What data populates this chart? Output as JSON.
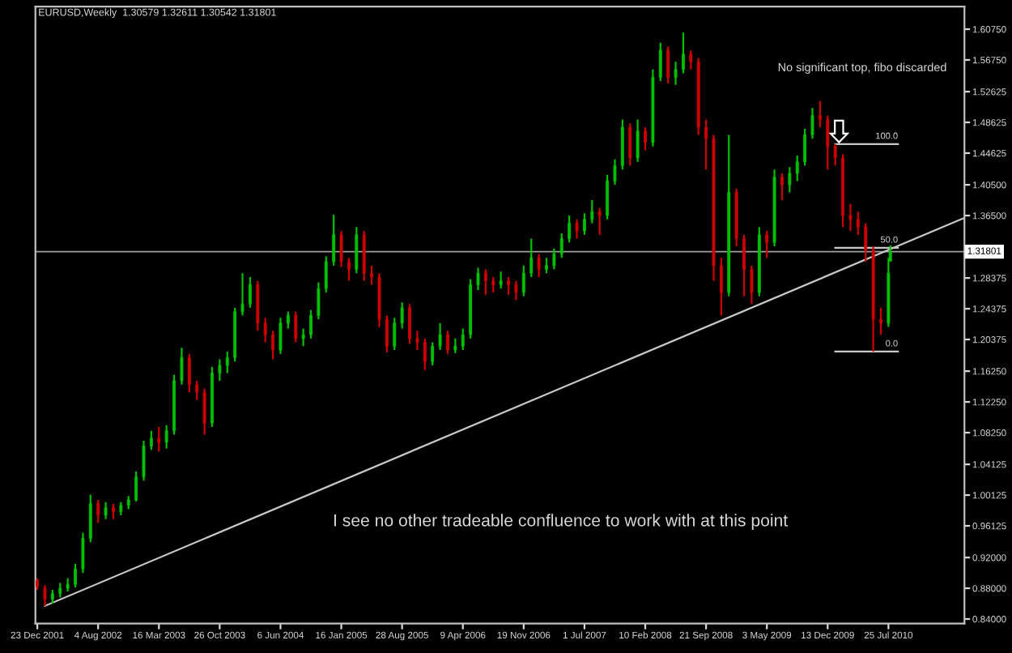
{
  "chart_data": {
    "type": "candlestick",
    "title": "EURUSD,Weekly  1.30579 1.32611 1.30542 1.31801",
    "x": [
      "2001-12-23",
      "2002-01-20",
      "2002-02-17",
      "2002-03-17",
      "2002-04-14",
      "2002-05-12",
      "2002-06-09",
      "2002-07-07",
      "2002-08-04",
      "2002-09-01",
      "2002-09-29",
      "2002-10-27",
      "2002-11-24",
      "2002-12-22",
      "2003-01-19",
      "2003-02-16",
      "2003-03-16",
      "2003-04-13",
      "2003-05-11",
      "2003-06-08",
      "2003-07-06",
      "2003-08-03",
      "2003-08-31",
      "2003-09-28",
      "2003-10-26",
      "2003-11-23",
      "2003-12-21",
      "2004-01-18",
      "2004-02-15",
      "2004-03-14",
      "2004-04-11",
      "2004-05-09",
      "2004-06-06",
      "2004-07-04",
      "2004-08-01",
      "2004-08-29",
      "2004-09-26",
      "2004-10-24",
      "2004-11-21",
      "2004-12-19",
      "2005-01-16",
      "2005-02-13",
      "2005-03-13",
      "2005-04-10",
      "2005-05-08",
      "2005-06-05",
      "2005-07-03",
      "2005-07-31",
      "2005-08-28",
      "2005-09-25",
      "2005-10-23",
      "2005-11-20",
      "2005-12-18",
      "2006-01-15",
      "2006-02-12",
      "2006-03-12",
      "2006-04-09",
      "2006-05-07",
      "2006-06-04",
      "2006-07-02",
      "2006-07-30",
      "2006-08-27",
      "2006-09-24",
      "2006-10-22",
      "2006-11-19",
      "2006-12-17",
      "2007-01-14",
      "2007-02-11",
      "2007-03-11",
      "2007-04-08",
      "2007-05-06",
      "2007-06-03",
      "2007-07-01",
      "2007-07-29",
      "2007-08-26",
      "2007-09-23",
      "2007-10-21",
      "2007-11-18",
      "2007-12-16",
      "2008-01-13",
      "2008-02-10",
      "2008-03-09",
      "2008-04-06",
      "2008-05-04",
      "2008-06-01",
      "2008-06-29",
      "2008-07-27",
      "2008-08-24",
      "2008-09-21",
      "2008-10-19",
      "2008-11-16",
      "2008-12-14",
      "2009-01-11",
      "2009-02-08",
      "2009-03-08",
      "2009-04-05",
      "2009-05-03",
      "2009-05-31",
      "2009-06-28",
      "2009-07-26",
      "2009-08-23",
      "2009-09-20",
      "2009-10-18",
      "2009-11-15",
      "2009-12-13",
      "2010-01-10",
      "2010-02-07",
      "2010-03-07",
      "2010-04-04",
      "2010-05-02",
      "2010-05-30",
      "2010-06-27",
      "2010-07-25",
      "2010-08-01"
    ],
    "ohlc": [
      [
        0.89,
        0.893,
        0.878,
        0.882
      ],
      [
        0.88,
        0.884,
        0.857,
        0.866
      ],
      [
        0.866,
        0.878,
        0.86,
        0.873
      ],
      [
        0.873,
        0.887,
        0.868,
        0.88
      ],
      [
        0.88,
        0.893,
        0.876,
        0.885
      ],
      [
        0.885,
        0.912,
        0.881,
        0.905
      ],
      [
        0.905,
        0.952,
        0.9,
        0.945
      ],
      [
        0.945,
        1.002,
        0.94,
        0.99
      ],
      [
        0.99,
        0.995,
        0.965,
        0.975
      ],
      [
        0.975,
        0.992,
        0.97,
        0.985
      ],
      [
        0.985,
        0.99,
        0.97,
        0.98
      ],
      [
        0.98,
        0.992,
        0.975,
        0.988
      ],
      [
        0.988,
        1.0,
        0.983,
        0.995
      ],
      [
        0.995,
        1.032,
        0.993,
        1.025
      ],
      [
        1.025,
        1.072,
        1.02,
        1.065
      ],
      [
        1.065,
        1.085,
        1.06,
        1.075
      ],
      [
        1.075,
        1.09,
        1.058,
        1.07
      ],
      [
        1.07,
        1.092,
        1.062,
        1.085
      ],
      [
        1.085,
        1.158,
        1.08,
        1.15
      ],
      [
        1.15,
        1.193,
        1.145,
        1.18
      ],
      [
        1.18,
        1.185,
        1.135,
        1.145
      ],
      [
        1.145,
        1.15,
        1.125,
        1.135
      ],
      [
        1.135,
        1.14,
        1.08,
        1.095
      ],
      [
        1.095,
        1.168,
        1.09,
        1.16
      ],
      [
        1.16,
        1.178,
        1.15,
        1.17
      ],
      [
        1.17,
        1.188,
        1.16,
        1.18
      ],
      [
        1.18,
        1.245,
        1.175,
        1.24
      ],
      [
        1.24,
        1.29,
        1.235,
        1.25
      ],
      [
        1.25,
        1.285,
        1.245,
        1.275
      ],
      [
        1.275,
        1.28,
        1.215,
        1.225
      ],
      [
        1.225,
        1.232,
        1.2,
        1.21
      ],
      [
        1.21,
        1.215,
        1.178,
        1.19
      ],
      [
        1.19,
        1.232,
        1.185,
        1.225
      ],
      [
        1.225,
        1.24,
        1.218,
        1.235
      ],
      [
        1.235,
        1.24,
        1.2,
        1.205
      ],
      [
        1.205,
        1.218,
        1.195,
        1.21
      ],
      [
        1.21,
        1.242,
        1.205,
        1.235
      ],
      [
        1.235,
        1.278,
        1.23,
        1.27
      ],
      [
        1.27,
        1.312,
        1.265,
        1.305
      ],
      [
        1.305,
        1.366,
        1.3,
        1.34
      ],
      [
        1.34,
        1.345,
        1.298,
        1.305
      ],
      [
        1.305,
        1.31,
        1.28,
        1.295
      ],
      [
        1.295,
        1.35,
        1.29,
        1.34
      ],
      [
        1.34,
        1.345,
        1.28,
        1.29
      ],
      [
        1.29,
        1.3,
        1.275,
        1.285
      ],
      [
        1.285,
        1.29,
        1.22,
        1.23
      ],
      [
        1.23,
        1.235,
        1.187,
        1.195
      ],
      [
        1.195,
        1.232,
        1.19,
        1.225
      ],
      [
        1.225,
        1.252,
        1.218,
        1.245
      ],
      [
        1.245,
        1.25,
        1.198,
        1.205
      ],
      [
        1.205,
        1.215,
        1.19,
        1.2
      ],
      [
        1.2,
        1.205,
        1.164,
        1.175
      ],
      [
        1.175,
        1.2,
        1.17,
        1.195
      ],
      [
        1.195,
        1.225,
        1.19,
        1.21
      ],
      [
        1.21,
        1.215,
        1.185,
        1.19
      ],
      [
        1.19,
        1.205,
        1.186,
        1.195
      ],
      [
        1.195,
        1.218,
        1.19,
        1.21
      ],
      [
        1.21,
        1.282,
        1.205,
        1.275
      ],
      [
        1.275,
        1.297,
        1.268,
        1.29
      ],
      [
        1.29,
        1.295,
        1.262,
        1.28
      ],
      [
        1.28,
        1.285,
        1.265,
        1.275
      ],
      [
        1.275,
        1.292,
        1.27,
        1.28
      ],
      [
        1.28,
        1.285,
        1.262,
        1.275
      ],
      [
        1.275,
        1.28,
        1.255,
        1.265
      ],
      [
        1.265,
        1.3,
        1.26,
        1.29
      ],
      [
        1.29,
        1.335,
        1.285,
        1.31
      ],
      [
        1.31,
        1.315,
        1.285,
        1.295
      ],
      [
        1.295,
        1.31,
        1.29,
        1.3
      ],
      [
        1.3,
        1.322,
        1.295,
        1.315
      ],
      [
        1.315,
        1.342,
        1.31,
        1.335
      ],
      [
        1.335,
        1.365,
        1.33,
        1.355
      ],
      [
        1.355,
        1.36,
        1.335,
        1.345
      ],
      [
        1.345,
        1.368,
        1.34,
        1.36
      ],
      [
        1.36,
        1.385,
        1.355,
        1.37
      ],
      [
        1.37,
        1.375,
        1.34,
        1.365
      ],
      [
        1.365,
        1.418,
        1.36,
        1.41
      ],
      [
        1.41,
        1.438,
        1.405,
        1.43
      ],
      [
        1.43,
        1.49,
        1.425,
        1.48
      ],
      [
        1.48,
        1.485,
        1.43,
        1.44
      ],
      [
        1.44,
        1.49,
        1.435,
        1.475
      ],
      [
        1.475,
        1.48,
        1.45,
        1.46
      ],
      [
        1.46,
        1.555,
        1.455,
        1.545
      ],
      [
        1.545,
        1.59,
        1.54,
        1.58
      ],
      [
        1.58,
        1.585,
        1.537,
        1.545
      ],
      [
        1.545,
        1.565,
        1.535,
        1.555
      ],
      [
        1.555,
        1.603,
        1.55,
        1.575
      ],
      [
        1.575,
        1.58,
        1.555,
        1.565
      ],
      [
        1.565,
        1.57,
        1.47,
        1.48
      ],
      [
        1.48,
        1.49,
        1.425,
        1.465
      ],
      [
        1.465,
        1.47,
        1.28,
        1.3
      ],
      [
        1.3,
        1.31,
        1.235,
        1.265
      ],
      [
        1.265,
        1.47,
        1.26,
        1.395
      ],
      [
        1.395,
        1.4,
        1.325,
        1.335
      ],
      [
        1.335,
        1.34,
        1.26,
        1.295
      ],
      [
        1.295,
        1.3,
        1.25,
        1.265
      ],
      [
        1.265,
        1.35,
        1.26,
        1.34
      ],
      [
        1.34,
        1.345,
        1.31,
        1.33
      ],
      [
        1.33,
        1.425,
        1.325,
        1.415
      ],
      [
        1.415,
        1.42,
        1.385,
        1.405
      ],
      [
        1.405,
        1.428,
        1.395,
        1.42
      ],
      [
        1.42,
        1.443,
        1.41,
        1.435
      ],
      [
        1.435,
        1.478,
        1.43,
        1.47
      ],
      [
        1.47,
        1.505,
        1.465,
        1.495
      ],
      [
        1.495,
        1.514,
        1.48,
        1.49
      ],
      [
        1.49,
        1.495,
        1.425,
        1.455
      ],
      [
        1.455,
        1.458,
        1.43,
        1.44
      ],
      [
        1.44,
        1.445,
        1.35,
        1.365
      ],
      [
        1.365,
        1.38,
        1.345,
        1.36
      ],
      [
        1.36,
        1.37,
        1.34,
        1.35
      ],
      [
        1.35,
        1.355,
        1.305,
        1.32
      ],
      [
        1.32,
        1.325,
        1.188,
        1.23
      ],
      [
        1.23,
        1.245,
        1.21,
        1.225
      ],
      [
        1.225,
        1.31,
        1.22,
        1.29
      ],
      [
        1.30579,
        1.32611,
        1.30542,
        1.31801
      ]
    ],
    "colors": [
      "#d00000",
      "#d00000",
      "#00c000",
      "#00c000",
      "#00c000",
      "#00c000",
      "#00c000",
      "#00c000",
      "#d00000",
      "#00c000",
      "#d00000",
      "#00c000",
      "#00c000",
      "#00c000",
      "#00c000",
      "#00c000",
      "#d00000",
      "#00c000",
      "#00c000",
      "#00c000",
      "#d00000",
      "#d00000",
      "#d00000",
      "#00c000",
      "#00c000",
      "#00c000",
      "#00c000",
      "#00c000",
      "#00c000",
      "#d00000",
      "#d00000",
      "#d00000",
      "#00c000",
      "#00c000",
      "#d00000",
      "#00c000",
      "#00c000",
      "#00c000",
      "#00c000",
      "#00c000",
      "#d00000",
      "#d00000",
      "#00c000",
      "#d00000",
      "#d00000",
      "#d00000",
      "#d00000",
      "#00c000",
      "#00c000",
      "#d00000",
      "#d00000",
      "#d00000",
      "#00c000",
      "#00c000",
      "#d00000",
      "#00c000",
      "#00c000",
      "#00c000",
      "#00c000",
      "#d00000",
      "#d00000",
      "#00c000",
      "#d00000",
      "#d00000",
      "#00c000",
      "#00c000",
      "#d00000",
      "#00c000",
      "#00c000",
      "#00c000",
      "#00c000",
      "#d00000",
      "#00c000",
      "#00c000",
      "#d00000",
      "#00c000",
      "#00c000",
      "#00c000",
      "#d00000",
      "#00c000",
      "#d00000",
      "#00c000",
      "#00c000",
      "#d00000",
      "#00c000",
      "#00c000",
      "#d00000",
      "#d00000",
      "#d00000",
      "#d00000",
      "#d00000",
      "#00c000",
      "#d00000",
      "#d00000",
      "#d00000",
      "#00c000",
      "#d00000",
      "#00c000",
      "#d00000",
      "#00c000",
      "#00c000",
      "#00c000",
      "#00c000",
      "#d00000",
      "#d00000",
      "#d00000",
      "#d00000",
      "#d00000",
      "#d00000",
      "#d00000",
      "#d00000",
      "#d00000",
      "#00c000",
      "#00c000"
    ],
    "series": [
      {
        "type": "line",
        "color": "#c8c8c8",
        "x": [
          "2002-01-20",
          "2011-05-01"
        ],
        "values": [
          0.857,
          1.362
        ]
      },
      {
        "type": "line",
        "color": "#c8c8c8",
        "x": [
          "2010-01-10",
          "2010-08-29"
        ],
        "values": [
          1.458,
          1.458
        ]
      },
      {
        "type": "line",
        "color": "#c8c8c8",
        "x": [
          "2010-01-10",
          "2010-08-29"
        ],
        "values": [
          1.323,
          1.323
        ]
      },
      {
        "type": "line",
        "color": "#c8c8c8",
        "x": [
          "2010-01-10",
          "2010-08-29"
        ],
        "values": [
          1.188,
          1.188
        ]
      }
    ],
    "ref_lines": [
      {
        "axis": "y",
        "value": 1.31801,
        "label": "1.31801",
        "color": "#a0a0a0"
      }
    ],
    "annotations": [
      {
        "text": "100.0",
        "x": "2010-08-29",
        "y": 1.458
      },
      {
        "text": "50.0",
        "x": "2010-08-29",
        "y": 1.323
      },
      {
        "text": "0.0",
        "x": "2010-08-29",
        "y": 1.188
      },
      "No significant top, fibo discarded",
      "I see no other tradeable confluence to work with at this point"
    ],
    "xlim": [
      "2001-12-16",
      "2011-05-01"
    ],
    "xticks": [
      {
        "value": "2001-12-23",
        "label": "23 Dec 2001"
      },
      {
        "value": "2002-08-04",
        "label": "4 Aug 2002"
      },
      {
        "value": "2003-03-16",
        "label": "16 Mar 2003"
      },
      {
        "value": "2003-10-26",
        "label": "26 Oct 2003"
      },
      {
        "value": "2004-06-06",
        "label": "6 Jun 2004"
      },
      {
        "value": "2005-01-16",
        "label": "16 Jan 2005"
      },
      {
        "value": "2005-08-28",
        "label": "28 Aug 2005"
      },
      {
        "value": "2006-04-09",
        "label": "9 Apr 2006"
      },
      {
        "value": "2006-11-19",
        "label": "19 Nov 2006"
      },
      {
        "value": "2007-07-01",
        "label": "1 Jul 2007"
      },
      {
        "value": "2008-02-10",
        "label": "10 Feb 2008"
      },
      {
        "value": "2008-09-21",
        "label": "21 Sep 2008"
      },
      {
        "value": "2009-05-03",
        "label": "3 May 2009"
      },
      {
        "value": "2009-12-13",
        "label": "13 Dec 2009"
      },
      {
        "value": "2010-07-25",
        "label": "25 Jul 2010"
      }
    ],
    "ylim": [
      0.834,
      1.637
    ],
    "yticks": [
      {
        "value": 0.84,
        "label": "0.84000"
      },
      {
        "value": 0.88,
        "label": "0.88000"
      },
      {
        "value": 0.92,
        "label": "0.92000"
      },
      {
        "value": 0.96125,
        "label": "0.96125"
      },
      {
        "value": 1.00125,
        "label": "1.00125"
      },
      {
        "value": 1.04125,
        "label": "1.04125"
      },
      {
        "value": 1.0825,
        "label": "1.08250"
      },
      {
        "value": 1.1225,
        "label": "1.12250"
      },
      {
        "value": 1.1625,
        "label": "1.16250"
      },
      {
        "value": 1.20375,
        "label": "1.20375"
      },
      {
        "value": 1.24375,
        "label": "1.24375"
      },
      {
        "value": 1.28375,
        "label": "1.28375"
      },
      {
        "value": 1.365,
        "label": "1.36500"
      },
      {
        "value": 1.405,
        "label": "1.40500"
      },
      {
        "value": 1.44625,
        "label": "1.44625"
      },
      {
        "value": 1.48625,
        "label": "1.48625"
      },
      {
        "value": 1.52625,
        "label": "1.52625"
      },
      {
        "value": 1.5675,
        "label": "1.56750"
      },
      {
        "value": 1.6075,
        "label": "1.60750"
      }
    ],
    "grid": false,
    "legend": false
  }
}
